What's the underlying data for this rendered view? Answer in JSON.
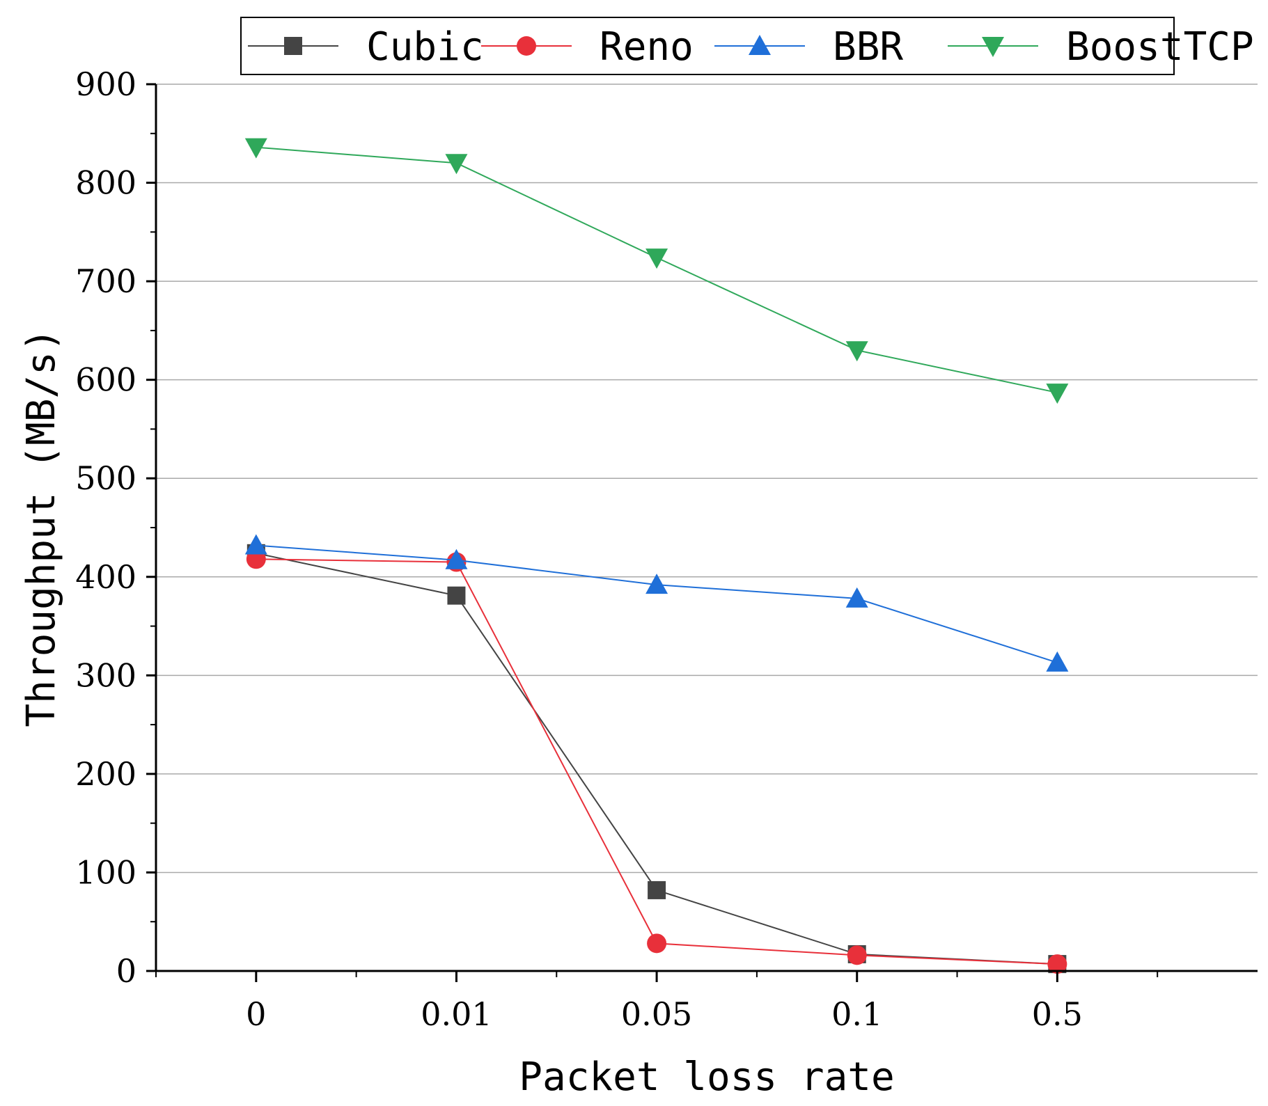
{
  "chart_data": {
    "type": "line",
    "xlabel": "Packet loss rate",
    "ylabel": "Throughput (MB/s)",
    "categories": [
      "0",
      "0.01",
      "0.05",
      "0.1",
      "0.5"
    ],
    "ylim": [
      0,
      900
    ],
    "yticks": [
      "0",
      "100",
      "200",
      "300",
      "400",
      "500",
      "600",
      "700",
      "800",
      "900"
    ],
    "grid": true,
    "legend_position": "top",
    "series": [
      {
        "name": "Cubic",
        "color": "#444444",
        "marker": "square",
        "values": [
          424,
          381,
          82,
          17,
          7
        ]
      },
      {
        "name": "Reno",
        "color": "#e8303a",
        "marker": "circle",
        "values": [
          418,
          415,
          28,
          16,
          7
        ]
      },
      {
        "name": "BBR",
        "color": "#1f6fd8",
        "marker": "triangle-up",
        "values": [
          432,
          417,
          392,
          378,
          313
        ]
      },
      {
        "name": "BoostTCP",
        "color": "#2fa85a",
        "marker": "triangle-down",
        "values": [
          836,
          820,
          724,
          630,
          587
        ]
      }
    ]
  }
}
